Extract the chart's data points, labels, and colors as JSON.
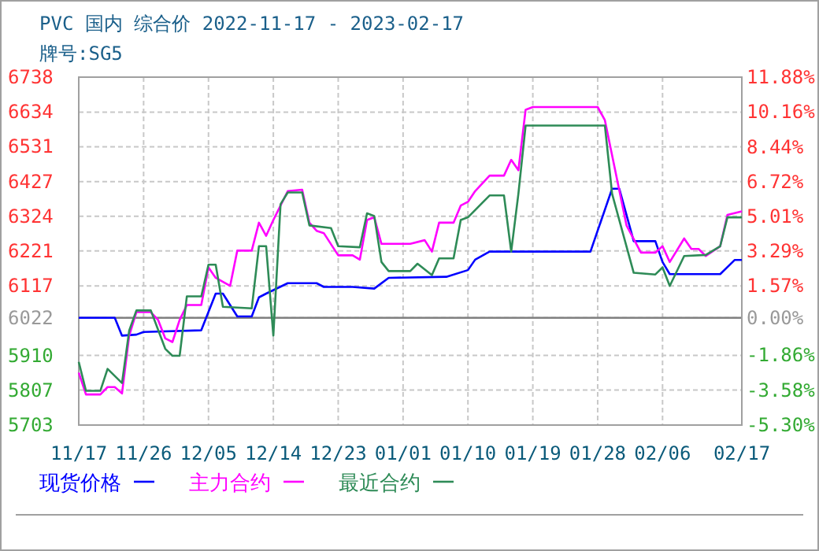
{
  "chart_data": {
    "type": "line",
    "title": "PVC 国内 综合价 2022-11-17 - 2023-02-17",
    "subtitle": "牌号:SG5",
    "xlim": [
      "2022-11-17",
      "2023-02-17"
    ],
    "xticks": [
      {
        "value": "2022-11-17",
        "label": "11/17"
      },
      {
        "value": "2022-11-26",
        "label": "11/26"
      },
      {
        "value": "2022-12-05",
        "label": "12/05"
      },
      {
        "value": "2022-12-14",
        "label": "12/14"
      },
      {
        "value": "2022-12-23",
        "label": "12/23"
      },
      {
        "value": "2023-01-01",
        "label": "01/01"
      },
      {
        "value": "2023-01-10",
        "label": "01/10"
      },
      {
        "value": "2023-01-19",
        "label": "01/19"
      },
      {
        "value": "2023-01-28",
        "label": "01/28"
      },
      {
        "value": "2023-02-06",
        "label": "02/06"
      },
      {
        "value": "2023-02-17",
        "label": "02/17"
      }
    ],
    "ylim": [
      5703,
      6738
    ],
    "yticks": [
      5703,
      5807,
      5910,
      6022,
      6117,
      6221,
      6324,
      6427,
      6531,
      6634,
      6738
    ],
    "y2lim": [
      -5.3,
      11.88
    ],
    "y2ticks": [
      {
        "value": -5.3,
        "label": "-5.30%"
      },
      {
        "value": -3.58,
        "label": "-3.58%"
      },
      {
        "value": -1.86,
        "label": "-1.86%"
      },
      {
        "value": 0,
        "label": "0.00%"
      },
      {
        "value": 1.57,
        "label": "1.57%"
      },
      {
        "value": 3.29,
        "label": "3.29%"
      },
      {
        "value": 5.01,
        "label": "5.01%"
      },
      {
        "value": 6.72,
        "label": "6.72%"
      },
      {
        "value": 8.44,
        "label": "8.44%"
      },
      {
        "value": 10.16,
        "label": "10.16%"
      },
      {
        "value": 11.88,
        "label": "11.88%"
      }
    ],
    "ref_lines": [
      {
        "axis": "y",
        "value": 6022,
        "color": "#808080"
      }
    ],
    "grid": true,
    "legend": "bottom",
    "series": [
      {
        "name": "现货价格",
        "color": "#0000ff",
        "x": [
          "2022-11-17",
          "2022-11-22",
          "2022-11-23",
          "2022-11-25",
          "2022-11-26",
          "2022-12-04",
          "2022-12-06",
          "2022-12-07",
          "2022-12-09",
          "2022-12-11",
          "2022-12-12",
          "2022-12-13",
          "2022-12-16",
          "2022-12-20",
          "2022-12-21",
          "2022-12-25",
          "2022-12-28",
          "2022-12-30",
          "2023-01-07",
          "2023-01-10",
          "2023-01-11",
          "2023-01-13",
          "2023-01-27",
          "2023-01-30",
          "2023-01-31",
          "2023-02-02",
          "2023-02-05",
          "2023-02-06",
          "2023-02-07",
          "2023-02-14",
          "2023-02-16",
          "2023-02-17"
        ],
        "values": [
          6022,
          6022,
          5969,
          5972,
          5980,
          5985,
          6094,
          6094,
          6026,
          6026,
          6083,
          6094,
          6125,
          6125,
          6114,
          6114,
          6109,
          6141,
          6144,
          6164,
          6195,
          6219,
          6219,
          6406,
          6406,
          6250,
          6250,
          6188,
          6152,
          6152,
          6194,
          6194
        ]
      },
      {
        "name": "主力合约",
        "color": "#ff00ff",
        "x": [
          "2022-11-17",
          "2022-11-18",
          "2022-11-20",
          "2022-11-21",
          "2022-11-22",
          "2022-11-23",
          "2022-11-24",
          "2022-11-25",
          "2022-11-27",
          "2022-11-28",
          "2022-11-29",
          "2022-11-30",
          "2022-12-01",
          "2022-12-02",
          "2022-12-04",
          "2022-12-05",
          "2022-12-06",
          "2022-12-08",
          "2022-12-09",
          "2022-12-11",
          "2022-12-12",
          "2022-12-13",
          "2022-12-14",
          "2022-12-16",
          "2022-12-18",
          "2022-12-19",
          "2022-12-20",
          "2022-12-21",
          "2022-12-23",
          "2022-12-25",
          "2022-12-26",
          "2022-12-27",
          "2022-12-28",
          "2022-12-29",
          "2023-01-02",
          "2023-01-04",
          "2023-01-05",
          "2023-01-06",
          "2023-01-08",
          "2023-01-09",
          "2023-01-10",
          "2023-01-11",
          "2023-01-13",
          "2023-01-15",
          "2023-01-16",
          "2023-01-17",
          "2023-01-18",
          "2023-01-19",
          "2023-01-28",
          "2023-01-29",
          "2023-02-01",
          "2023-02-03",
          "2023-02-05",
          "2023-02-06",
          "2023-02-07",
          "2023-02-09",
          "2023-02-10",
          "2023-02-11",
          "2023-02-12",
          "2023-02-14",
          "2023-02-15",
          "2023-02-17"
        ],
        "values": [
          5859,
          5794,
          5794,
          5816,
          5816,
          5797,
          5969,
          6039,
          6039,
          6016,
          5961,
          5950,
          6016,
          6060,
          6060,
          6172,
          6141,
          6117,
          6222,
          6222,
          6305,
          6266,
          6313,
          6399,
          6403,
          6305,
          6281,
          6274,
          6208,
          6208,
          6195,
          6313,
          6321,
          6242,
          6242,
          6253,
          6219,
          6305,
          6305,
          6356,
          6367,
          6399,
          6445,
          6445,
          6492,
          6461,
          6641,
          6649,
          6649,
          6610,
          6297,
          6216,
          6216,
          6235,
          6188,
          6258,
          6227,
          6227,
          6206,
          6235,
          6328,
          6339
        ]
      },
      {
        "name": "最近合约",
        "color": "#2e8b57",
        "x": [
          "2022-11-17",
          "2022-11-18",
          "2022-11-20",
          "2022-11-21",
          "2022-11-23",
          "2022-11-24",
          "2022-11-25",
          "2022-11-27",
          "2022-11-29",
          "2022-11-30",
          "2022-12-01",
          "2022-12-02",
          "2022-12-04",
          "2022-12-05",
          "2022-12-06",
          "2022-12-07",
          "2022-12-11",
          "2022-12-12",
          "2022-12-13",
          "2022-12-14",
          "2022-12-15",
          "2022-12-16",
          "2022-12-18",
          "2022-12-19",
          "2022-12-22",
          "2022-12-23",
          "2022-12-26",
          "2022-12-27",
          "2022-12-28",
          "2022-12-29",
          "2022-12-30",
          "2023-01-02",
          "2023-01-03",
          "2023-01-05",
          "2023-01-06",
          "2023-01-08",
          "2023-01-09",
          "2023-01-10",
          "2023-01-13",
          "2023-01-15",
          "2023-01-16",
          "2023-01-17",
          "2023-01-18",
          "2023-01-29",
          "2023-01-30",
          "2023-02-02",
          "2023-02-05",
          "2023-02-06",
          "2023-02-07",
          "2023-02-09",
          "2023-02-12",
          "2023-02-14",
          "2023-02-15",
          "2023-02-17"
        ],
        "values": [
          5891,
          5805,
          5805,
          5870,
          5828,
          5984,
          6044,
          6044,
          5930,
          5909,
          5909,
          6086,
          6086,
          6180,
          6180,
          6055,
          6050,
          6235,
          6235,
          5969,
          6360,
          6395,
          6395,
          6297,
          6289,
          6235,
          6232,
          6333,
          6325,
          6188,
          6161,
          6161,
          6183,
          6149,
          6199,
          6199,
          6313,
          6321,
          6386,
          6386,
          6219,
          6391,
          6594,
          6594,
          6391,
          6156,
          6151,
          6172,
          6117,
          6206,
          6209,
          6235,
          6321,
          6321
        ]
      }
    ]
  }
}
